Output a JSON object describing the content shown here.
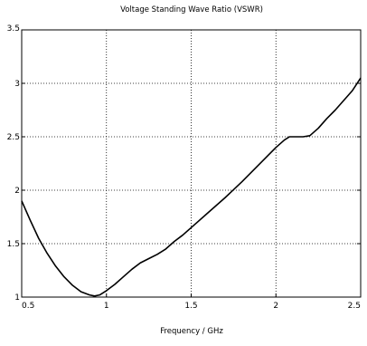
{
  "chart_data": {
    "type": "line",
    "title": "Voltage Standing Wave Ratio (VSWR)",
    "xlabel": "Frequency / GHz",
    "ylabel": "",
    "xlim": [
      0.5,
      2.5
    ],
    "ylim": [
      1,
      3.5
    ],
    "x_ticks": [
      {
        "value": 0.5,
        "label": "0.5"
      },
      {
        "value": 1,
        "label": "1"
      },
      {
        "value": 1.5,
        "label": "1.5"
      },
      {
        "value": 2,
        "label": "2"
      },
      {
        "value": 2.5,
        "label": "2.5"
      }
    ],
    "y_ticks": [
      {
        "value": 1,
        "label": "1"
      },
      {
        "value": 1.5,
        "label": "1.5"
      },
      {
        "value": 2,
        "label": "2"
      },
      {
        "value": 2.5,
        "label": "2.5"
      },
      {
        "value": 3,
        "label": "3"
      },
      {
        "value": 3.5,
        "label": "3.5"
      }
    ],
    "grid": true,
    "grid_style": "dotted",
    "line_color": "#000000",
    "series": [
      {
        "x": [
          0.5,
          0.55,
          0.6,
          0.65,
          0.7,
          0.75,
          0.8,
          0.85,
          0.9,
          0.93,
          0.96,
          1.0,
          1.05,
          1.1,
          1.15,
          1.2,
          1.25,
          1.3,
          1.35,
          1.4,
          1.45,
          1.5,
          1.6,
          1.7,
          1.8,
          1.9,
          2.0,
          2.05,
          2.08,
          2.12,
          2.16,
          2.2,
          2.25,
          2.3,
          2.35,
          2.4,
          2.45,
          2.5
        ],
        "y": [
          1.9,
          1.72,
          1.55,
          1.41,
          1.29,
          1.19,
          1.11,
          1.05,
          1.02,
          1.01,
          1.02,
          1.06,
          1.12,
          1.19,
          1.26,
          1.32,
          1.36,
          1.4,
          1.45,
          1.52,
          1.58,
          1.65,
          1.79,
          1.93,
          2.08,
          2.24,
          2.4,
          2.47,
          2.5,
          2.5,
          2.5,
          2.51,
          2.58,
          2.67,
          2.75,
          2.84,
          2.93,
          3.05
        ]
      }
    ]
  }
}
